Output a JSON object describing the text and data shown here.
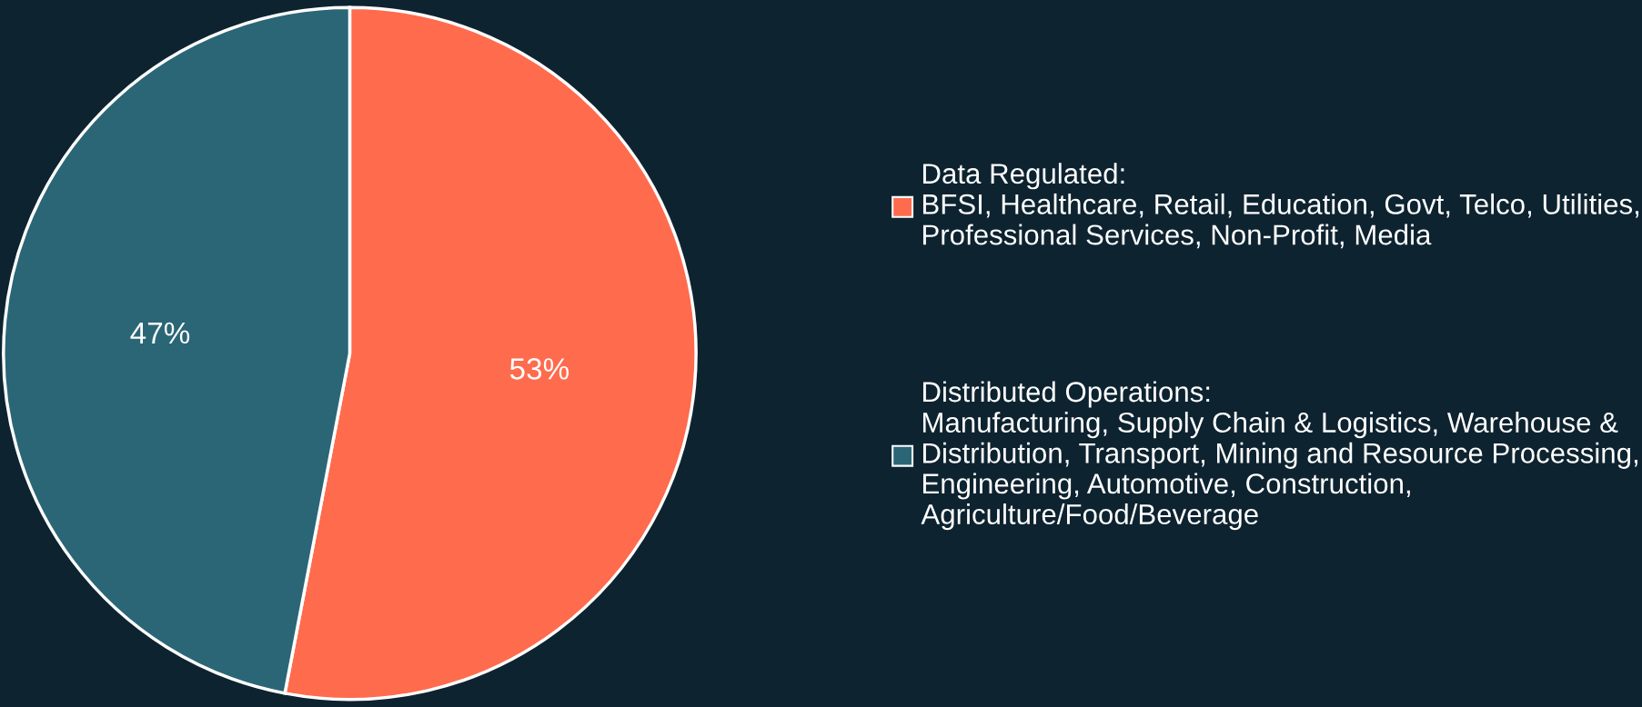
{
  "chart_data": {
    "type": "pie",
    "categories": [
      "Data Regulated:\nBFSI, Healthcare, Retail, Education, Govt, Telco, Utilities,\nProfessional Services, Non-Profit, Media",
      "Distributed Operations:\nManufacturing, Supply Chain & Logistics, Warehouse &\nDistribution, Transport, Mining and Resource Processing,\nEngineering, Automotive, Construction,\nAgriculture/Food/Beverage"
    ],
    "values": [
      53,
      47
    ],
    "colors": [
      "#ff6b4d",
      "#2b6676"
    ],
    "value_labels": [
      "53%",
      "47%"
    ],
    "legend": "right"
  }
}
